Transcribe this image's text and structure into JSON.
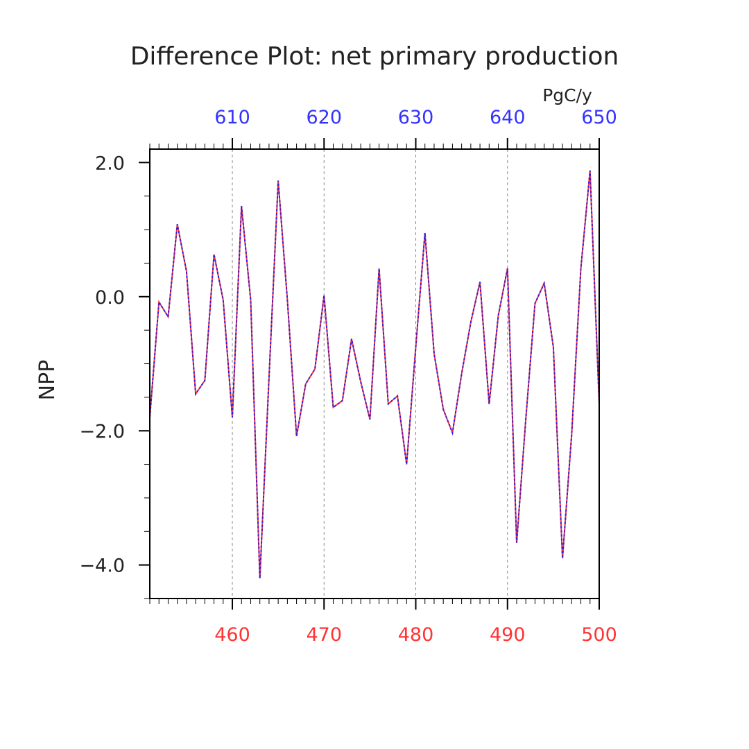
{
  "chart_data": {
    "type": "line",
    "title": "Difference Plot: net primary production",
    "units": "PgC/y",
    "ylabel": "NPP",
    "ylim": [
      -4.5,
      2.2
    ],
    "yticks": [
      2.0,
      0.0,
      -2.0,
      -4.0
    ],
    "ytick_labels": [
      "2.0",
      "0.0",
      "−2.0",
      "−4.0"
    ],
    "bottom_axis": {
      "color": "#ff3333",
      "range": [
        451,
        500
      ],
      "ticks": [
        460,
        470,
        480,
        490,
        500
      ],
      "tick_labels": [
        "460",
        "470",
        "480",
        "490",
        "500"
      ]
    },
    "top_axis": {
      "color": "#3333ff",
      "ticks": [
        610,
        620,
        630,
        640,
        650
      ],
      "tick_labels": [
        "610",
        "620",
        "630",
        "640",
        "650"
      ]
    },
    "grid": "vertical dashed at major x ticks",
    "x": [
      451,
      452,
      453,
      454,
      455,
      456,
      457,
      458,
      459,
      460,
      461,
      462,
      463,
      464,
      465,
      466,
      467,
      468,
      469,
      470,
      471,
      472,
      473,
      474,
      475,
      476,
      477,
      478,
      479,
      480,
      481,
      482,
      483,
      484,
      485,
      486,
      487,
      488,
      489,
      490,
      491,
      492,
      493,
      494,
      495,
      496,
      497,
      498,
      499,
      500
    ],
    "series": [
      {
        "color": "#ff3333",
        "style": "solid",
        "values": [
          -1.8,
          -0.08,
          -0.3,
          1.08,
          0.38,
          -1.45,
          -1.25,
          0.63,
          -0.05,
          -1.8,
          1.35,
          -0.05,
          -4.2,
          -1.2,
          1.73,
          -0.05,
          -2.08,
          -1.3,
          -1.08,
          0.02,
          -1.65,
          -1.55,
          -0.63,
          -1.27,
          -1.83,
          0.42,
          -1.6,
          -1.48,
          -2.5,
          -0.75,
          0.95,
          -0.85,
          -1.68,
          -2.03,
          -1.15,
          -0.38,
          0.22,
          -1.6,
          -0.28,
          0.42,
          -3.67,
          -1.82,
          -0.1,
          0.2,
          -0.75,
          -3.9,
          -2.05,
          0.42,
          1.88,
          -1.6
        ]
      },
      {
        "color": "#2222ee",
        "style": "dotted",
        "values": [
          -1.8,
          -0.08,
          -0.3,
          1.08,
          0.38,
          -1.45,
          -1.25,
          0.63,
          -0.05,
          -1.8,
          1.35,
          -0.05,
          -4.2,
          -1.2,
          1.73,
          -0.05,
          -2.08,
          -1.3,
          -1.08,
          0.02,
          -1.65,
          -1.55,
          -0.63,
          -1.27,
          -1.83,
          0.42,
          -1.6,
          -1.48,
          -2.5,
          -0.75,
          0.95,
          -0.85,
          -1.68,
          -2.03,
          -1.15,
          -0.38,
          0.22,
          -1.6,
          -0.28,
          0.42,
          -3.67,
          -1.82,
          -0.1,
          0.2,
          -0.75,
          -3.9,
          -2.05,
          0.42,
          1.88,
          -1.6
        ]
      }
    ]
  }
}
